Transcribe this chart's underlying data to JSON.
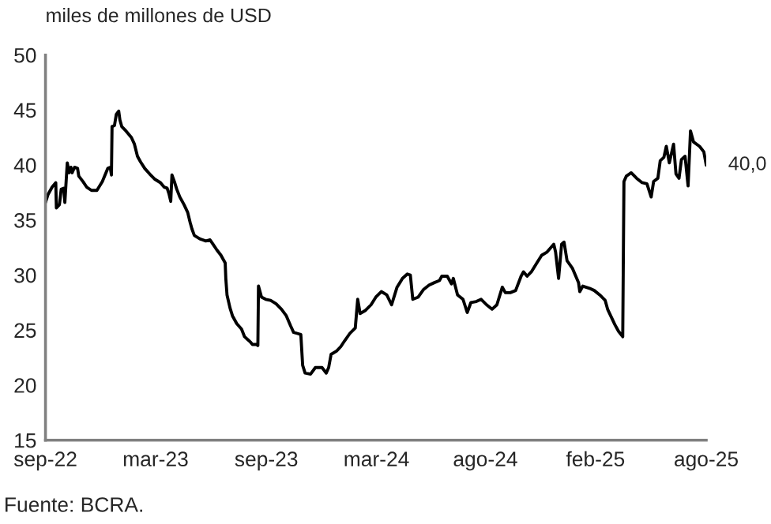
{
  "chart_data": {
    "type": "line",
    "ylabel": "miles de millones de USD",
    "x": [
      "2022-09-01",
      "2022-09-05",
      "2022-09-12",
      "2022-09-18",
      "2022-09-19",
      "2022-09-24",
      "2022-09-27",
      "2022-10-01",
      "2022-10-03",
      "2022-10-07",
      "2022-10-10",
      "2022-10-13",
      "2022-10-15",
      "2022-10-19",
      "2022-10-24",
      "2022-10-26",
      "2022-11-02",
      "2022-11-08",
      "2022-11-16",
      "2022-11-25",
      "2022-12-04",
      "2022-12-13",
      "2022-12-17",
      "2022-12-19",
      "2022-12-20",
      "2022-12-24",
      "2022-12-27",
      "2022-12-31",
      "2023-01-02",
      "2023-01-05",
      "2023-01-12",
      "2023-01-21",
      "2023-01-26",
      "2023-01-31",
      "2023-02-05",
      "2023-02-12",
      "2023-02-20",
      "2023-03-01",
      "2023-03-10",
      "2023-03-16",
      "2023-03-21",
      "2023-03-24",
      "2023-03-27",
      "2023-03-29",
      "2023-04-02",
      "2023-04-06",
      "2023-04-11",
      "2023-04-18",
      "2023-04-24",
      "2023-04-28",
      "2023-05-01",
      "2023-05-05",
      "2023-05-14",
      "2023-05-24",
      "2023-05-31",
      "2023-06-05",
      "2023-06-11",
      "2023-06-18",
      "2023-06-25",
      "2023-06-26",
      "2023-06-28",
      "2023-07-03",
      "2023-07-07",
      "2023-07-14",
      "2023-07-22",
      "2023-07-27",
      "2023-07-31",
      "2023-08-06",
      "2023-08-09",
      "2023-08-15",
      "2023-08-18",
      "2023-08-19",
      "2023-08-24",
      "2023-08-31",
      "2023-09-08",
      "2023-09-17",
      "2023-09-26",
      "2023-10-04",
      "2023-10-11",
      "2023-10-16",
      "2023-10-22",
      "2023-10-28",
      "2023-10-31",
      "2023-11-04",
      "2023-11-13",
      "2023-11-21",
      "2023-12-02",
      "2023-12-09",
      "2023-12-13",
      "2023-12-17",
      "2023-12-26",
      "2024-01-02",
      "2024-01-08",
      "2024-01-17",
      "2024-01-26",
      "2024-01-30",
      "2024-02-03",
      "2024-02-12",
      "2024-02-21",
      "2024-02-29",
      "2024-03-09",
      "2024-03-18",
      "2024-03-26",
      "2024-04-04",
      "2024-04-13",
      "2024-04-21",
      "2024-04-26",
      "2024-04-30",
      "2024-05-09",
      "2024-05-18",
      "2024-05-27",
      "2024-06-04",
      "2024-06-13",
      "2024-06-17",
      "2024-06-26",
      "2024-07-03",
      "2024-07-06",
      "2024-07-13",
      "2024-07-22",
      "2024-07-29",
      "2024-08-04",
      "2024-08-13",
      "2024-08-21",
      "2024-08-30",
      "2024-09-08",
      "2024-09-16",
      "2024-09-25",
      "2024-09-30",
      "2024-10-08",
      "2024-10-17",
      "2024-10-26",
      "2024-10-30",
      "2024-11-05",
      "2024-11-12",
      "2024-11-21",
      "2024-11-29",
      "2024-12-08",
      "2024-12-19",
      "2024-12-22",
      "2024-12-27",
      "2025-01-01",
      "2025-01-05",
      "2025-01-10",
      "2025-01-19",
      "2025-01-29",
      "2025-01-31",
      "2025-02-05",
      "2025-02-16",
      "2025-02-24",
      "2025-03-05",
      "2025-03-14",
      "2025-03-18",
      "2025-03-24",
      "2025-03-30",
      "2025-04-05",
      "2025-04-12",
      "2025-04-14",
      "2025-04-18",
      "2025-04-26",
      "2025-05-05",
      "2025-05-14",
      "2025-05-22",
      "2025-05-29",
      "2025-06-02",
      "2025-06-09",
      "2025-06-13",
      "2025-06-19",
      "2025-06-23",
      "2025-06-28",
      "2025-07-05",
      "2025-07-09",
      "2025-07-14",
      "2025-07-18",
      "2025-07-24",
      "2025-07-29",
      "2025-08-02",
      "2025-08-07",
      "2025-08-17",
      "2025-08-24",
      "2025-08-28"
    ],
    "series": [
      {
        "color": "#000000",
        "values": [
          36.6,
          37.3,
          38.0,
          38.4,
          36.1,
          36.4,
          37.8,
          37.9,
          36.6,
          40.2,
          39.3,
          39.8,
          39.3,
          39.8,
          39.7,
          39.0,
          38.5,
          38.0,
          37.7,
          37.7,
          38.5,
          39.7,
          39.8,
          39.1,
          43.5,
          43.6,
          44.6,
          44.9,
          44.1,
          43.5,
          43.1,
          42.5,
          41.9,
          40.8,
          40.3,
          39.7,
          39.2,
          38.7,
          38.4,
          38.0,
          37.9,
          37.4,
          36.7,
          39.1,
          38.5,
          37.8,
          37.1,
          36.4,
          35.7,
          34.8,
          34.2,
          33.6,
          33.3,
          33.1,
          33.2,
          32.8,
          32.3,
          31.8,
          31.1,
          29.7,
          28.2,
          27.0,
          26.3,
          25.6,
          25.1,
          24.4,
          24.2,
          23.9,
          23.7,
          23.7,
          23.6,
          29.0,
          28.0,
          27.8,
          27.7,
          27.4,
          26.9,
          26.3,
          25.4,
          24.8,
          24.7,
          24.6,
          21.8,
          21.1,
          21.0,
          21.6,
          21.6,
          21.1,
          21.6,
          22.8,
          23.1,
          23.5,
          24.0,
          24.7,
          25.2,
          27.8,
          26.5,
          26.8,
          27.3,
          28.0,
          28.5,
          28.2,
          27.3,
          28.9,
          29.7,
          30.1,
          30.0,
          27.8,
          28.0,
          28.7,
          29.1,
          29.3,
          29.5,
          29.9,
          29.9,
          29.2,
          29.7,
          28.2,
          27.8,
          26.6,
          27.5,
          27.6,
          27.8,
          27.3,
          26.9,
          27.3,
          28.9,
          28.4,
          28.4,
          28.6,
          29.9,
          30.3,
          29.9,
          30.3,
          31.1,
          31.8,
          32.1,
          32.8,
          32.1,
          29.7,
          32.8,
          33.0,
          31.3,
          30.6,
          29.3,
          28.5,
          29.0,
          28.8,
          28.6,
          28.2,
          27.7,
          26.9,
          26.2,
          25.5,
          24.9,
          24.4,
          38.5,
          39.0,
          39.3,
          38.8,
          38.4,
          38.3,
          37.1,
          38.5,
          38.8,
          40.4,
          40.7,
          41.7,
          40.2,
          41.9,
          39.2,
          38.8,
          40.5,
          40.8,
          38.1,
          43.1,
          42.1,
          41.7,
          41.2,
          40.0
        ]
      }
    ],
    "xlim": [
      "2022-09-01",
      "2025-08-28"
    ],
    "xticks": [
      {
        "value": "2022-09-01",
        "label": "sep-22"
      },
      {
        "value": "2023-03-02",
        "label": "mar-23"
      },
      {
        "value": "2023-09-01",
        "label": "sep-23"
      },
      {
        "value": "2024-03-01",
        "label": "mar-24"
      },
      {
        "value": "2024-08-28",
        "label": "ago-24"
      },
      {
        "value": "2025-02-26",
        "label": "feb-25"
      },
      {
        "value": "2025-08-28",
        "label": "ago-25"
      }
    ],
    "ylim": [
      15,
      50
    ],
    "yticks": [
      15,
      20,
      25,
      30,
      35,
      40,
      45,
      50
    ],
    "annotations": [
      {
        "text": "40,0",
        "x": "2025-08-28",
        "y": 40.0
      },
      "Fuente: BCRA."
    ],
    "grid": false,
    "legend": false,
    "marker": "none",
    "line_style": "solid"
  }
}
